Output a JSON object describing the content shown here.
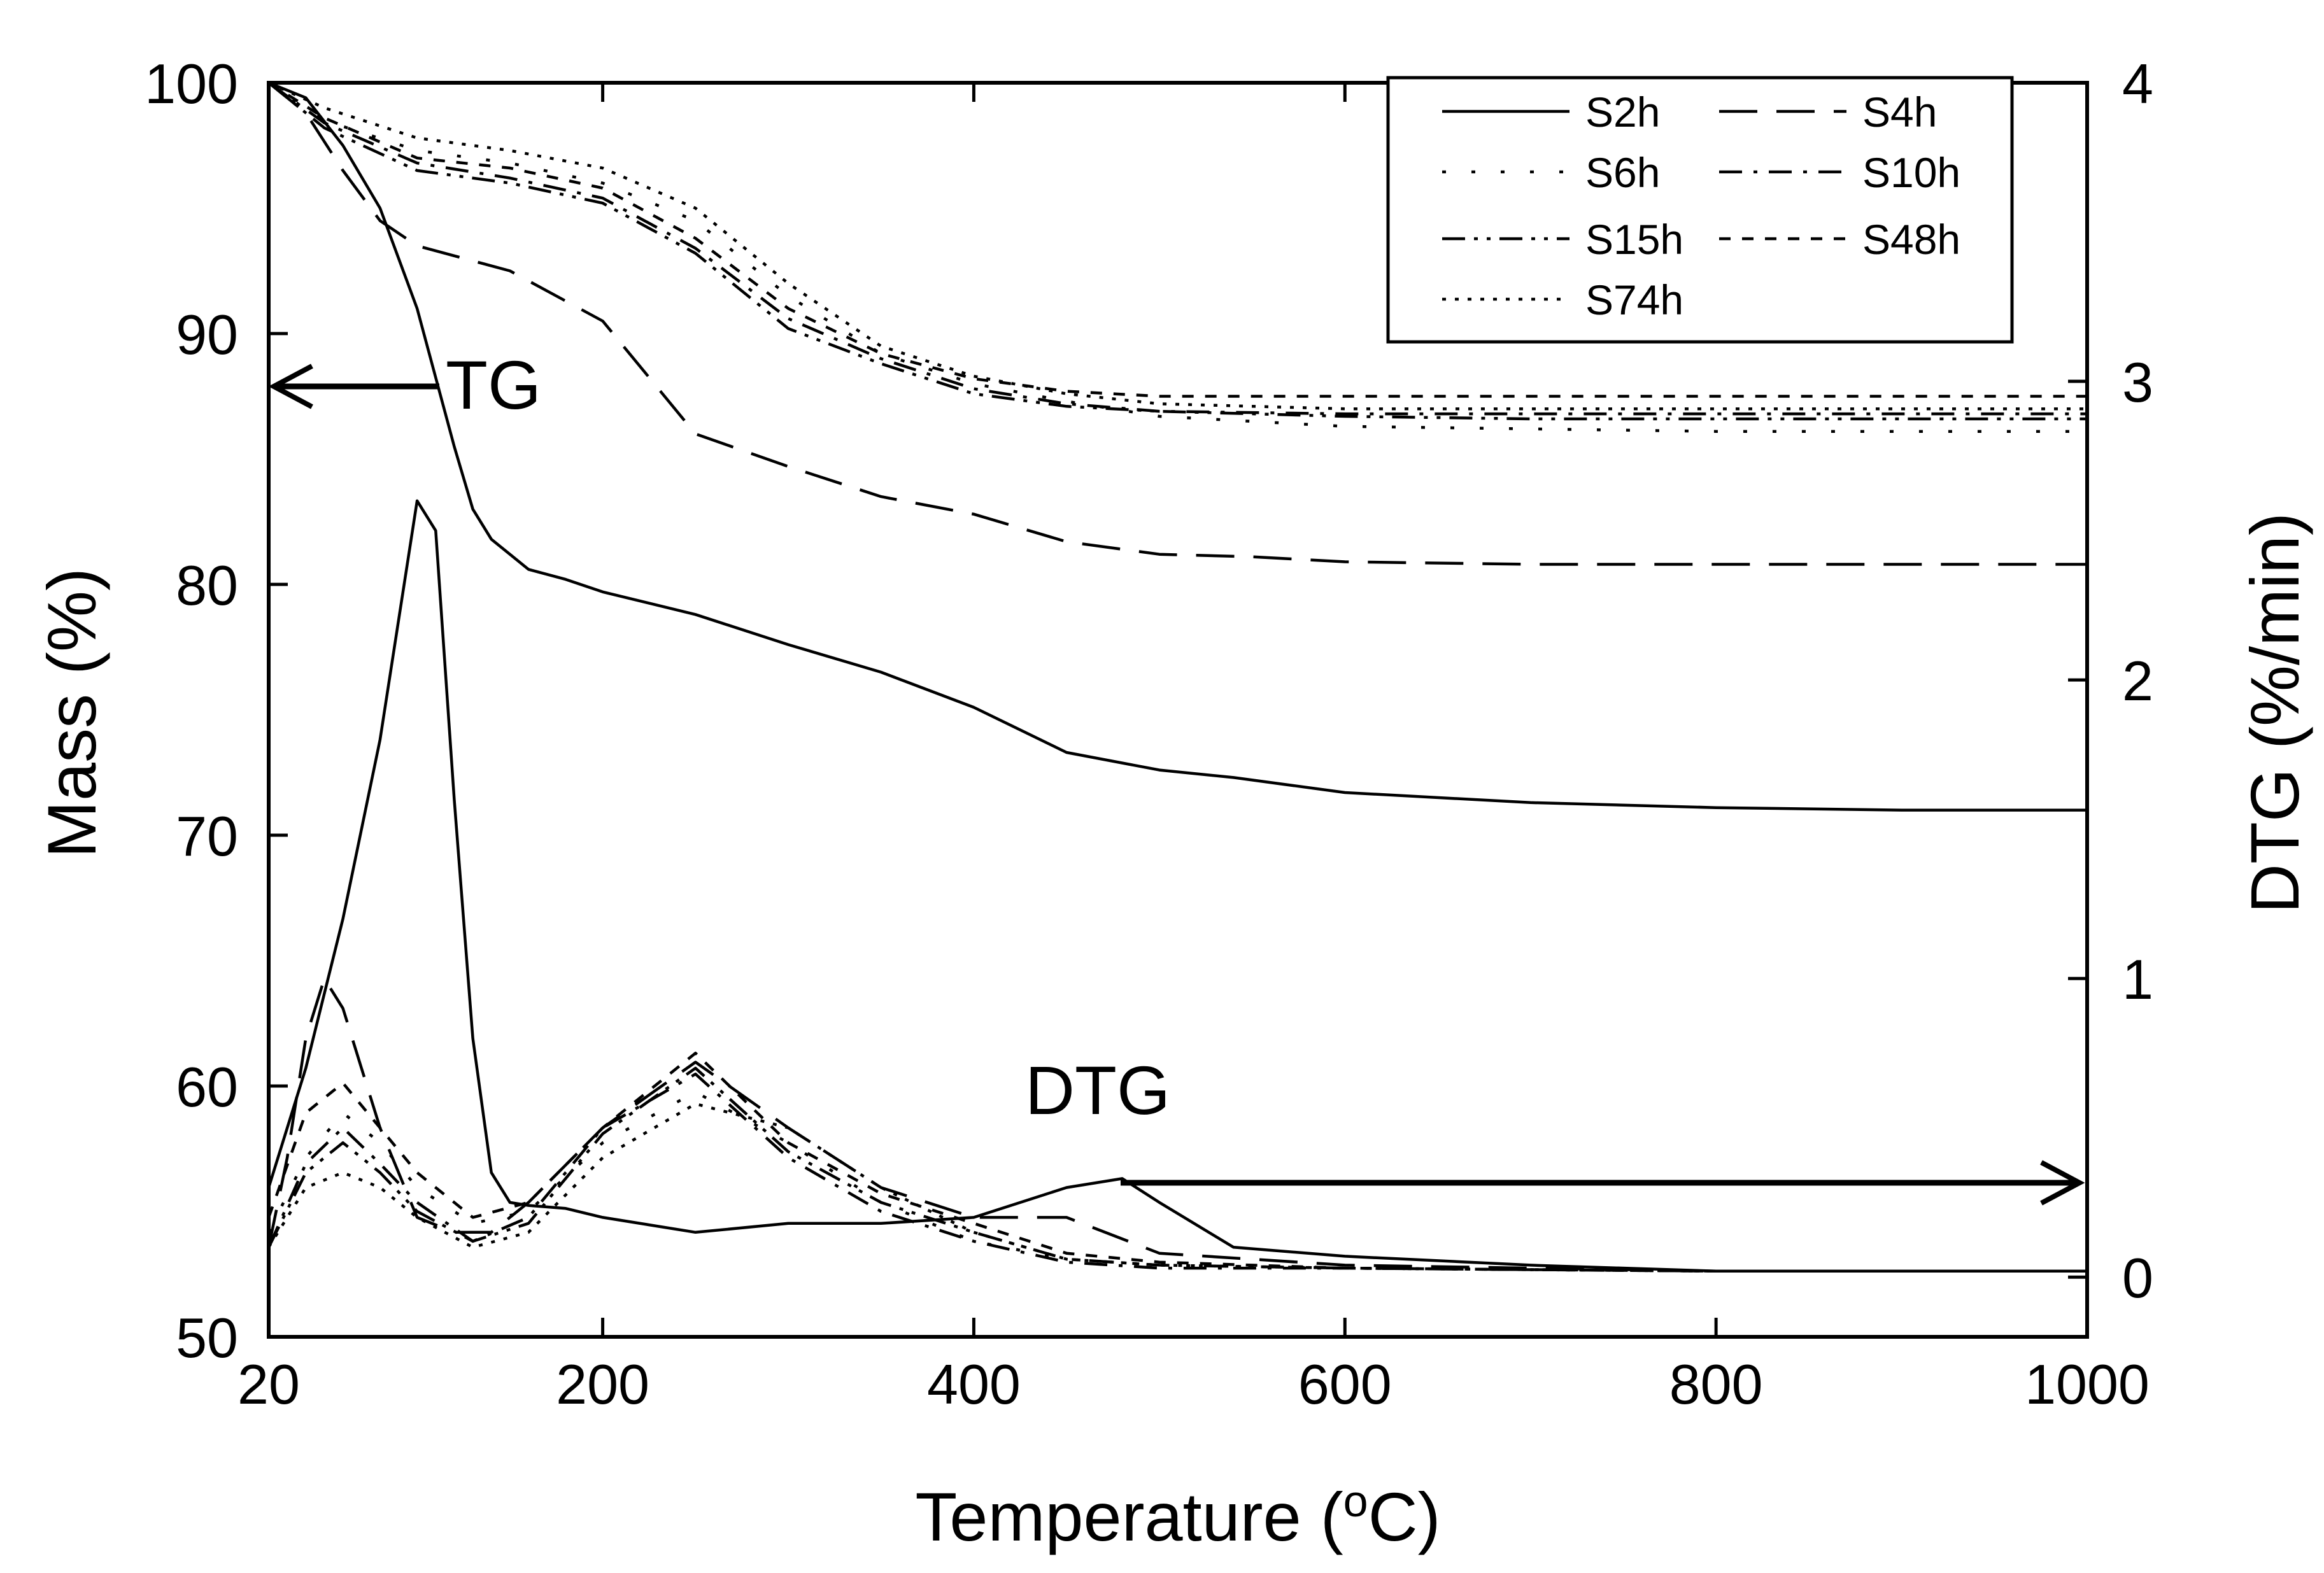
{
  "chart_data": {
    "type": "line",
    "title": "",
    "xlabel": "Temperature (°C)",
    "xlabel_parts": {
      "prefix": "Temperature (",
      "superscript": "o",
      "suffix": "C)"
    },
    "ylabel_left": "Mass (%)",
    "ylabel_right": "DTG (%/min)",
    "xlim": [
      20,
      1000
    ],
    "ylim_left": [
      50,
      100
    ],
    "ylim_right": [
      -0.2,
      4
    ],
    "x_ticks": [
      20,
      200,
      400,
      600,
      800,
      1000
    ],
    "y_ticks_left": [
      50,
      60,
      70,
      80,
      90,
      100
    ],
    "y_ticks_right": [
      0,
      1,
      2,
      3,
      4
    ],
    "grid": false,
    "legend_position": "top-right",
    "annotations": {
      "tg": "TG",
      "dtg": "DTG"
    },
    "series": [
      {
        "name": "S2h",
        "dash": "solid",
        "tg": {
          "x": [
            20,
            40,
            60,
            80,
            100,
            120,
            130,
            140,
            150,
            160,
            180,
            200,
            250,
            300,
            350,
            400,
            450,
            500,
            540,
            600,
            700,
            800,
            900,
            1000
          ],
          "y": [
            100,
            99.4,
            97.5,
            95,
            91,
            85.5,
            83,
            81.8,
            81.2,
            80.6,
            80.2,
            79.7,
            78.8,
            77.6,
            76.5,
            75.1,
            73.3,
            72.6,
            72.3,
            71.7,
            71.3,
            71.1,
            71,
            71
          ]
        },
        "dtg": {
          "x": [
            20,
            40,
            60,
            80,
            100,
            110,
            120,
            130,
            140,
            150,
            160,
            180,
            200,
            250,
            300,
            350,
            400,
            450,
            480,
            500,
            540,
            600,
            700,
            800,
            1000
          ],
          "y": [
            0.3,
            0.7,
            1.2,
            1.8,
            2.6,
            2.5,
            1.6,
            0.8,
            0.35,
            0.25,
            0.24,
            0.23,
            0.2,
            0.15,
            0.18,
            0.18,
            0.2,
            0.3,
            0.33,
            0.25,
            0.1,
            0.07,
            0.04,
            0.02,
            0.02
          ]
        }
      },
      {
        "name": "S4h",
        "dash": "dashed",
        "tg": {
          "x": [
            20,
            40,
            60,
            80,
            100,
            150,
            200,
            250,
            300,
            350,
            400,
            450,
            500,
            550,
            600,
            700,
            800,
            900,
            1000
          ],
          "y": [
            100,
            98.8,
            96.5,
            94.5,
            93.5,
            92.5,
            90.5,
            86,
            84.7,
            83.5,
            82.8,
            81.7,
            81.2,
            81.1,
            80.9,
            80.8,
            80.8,
            80.8,
            80.8
          ]
        },
        "dtg": {
          "x": [
            20,
            30,
            40,
            50,
            60,
            70,
            80,
            90,
            100,
            120,
            140,
            160,
            200,
            250,
            300,
            350,
            400,
            450,
            500,
            600,
            800,
            1000
          ],
          "y": [
            0.1,
            0.4,
            0.8,
            1.0,
            0.9,
            0.7,
            0.5,
            0.35,
            0.2,
            0.15,
            0.15,
            0.25,
            0.5,
            0.72,
            0.5,
            0.3,
            0.2,
            0.2,
            0.08,
            0.04,
            0.02,
            0.02
          ]
        }
      },
      {
        "name": "S6h",
        "dash": "sparse-dot",
        "tg": {
          "x": [
            20,
            50,
            100,
            150,
            200,
            250,
            300,
            350,
            400,
            450,
            500,
            600,
            700,
            800,
            900,
            1000
          ],
          "y": [
            100,
            98.5,
            97.3,
            96.8,
            96,
            94.5,
            91.5,
            89.2,
            88,
            87.3,
            86.7,
            86.3,
            86.2,
            86.1,
            86.1,
            86.1
          ]
        },
        "dtg": {
          "x": [
            20,
            40,
            60,
            80,
            100,
            130,
            160,
            200,
            250,
            300,
            350,
            400,
            450,
            500,
            600,
            800,
            1000
          ],
          "y": [
            0.15,
            0.4,
            0.55,
            0.45,
            0.3,
            0.18,
            0.22,
            0.45,
            0.62,
            0.45,
            0.25,
            0.12,
            0.06,
            0.04,
            0.03,
            0.02,
            0.02
          ]
        }
      },
      {
        "name": "S10h",
        "dash": "dash-dot",
        "tg": {
          "x": [
            20,
            50,
            100,
            150,
            200,
            250,
            300,
            350,
            400,
            450,
            500,
            600,
            700,
            800,
            900,
            1000
          ],
          "y": [
            100,
            98.4,
            96.8,
            96.2,
            95.4,
            93.4,
            90.6,
            89,
            87.8,
            87.2,
            86.9,
            86.8,
            86.8,
            86.8,
            86.8,
            86.8
          ]
        },
        "dtg": {
          "x": [
            20,
            40,
            60,
            80,
            100,
            130,
            160,
            200,
            250,
            300,
            350,
            400,
            450,
            500,
            600,
            800,
            1000
          ],
          "y": [
            0.1,
            0.38,
            0.5,
            0.38,
            0.25,
            0.12,
            0.2,
            0.5,
            0.68,
            0.4,
            0.22,
            0.12,
            0.05,
            0.03,
            0.03,
            0.02,
            0.02
          ]
        }
      },
      {
        "name": "S15h",
        "dash": "dash-dot-dot",
        "tg": {
          "x": [
            20,
            50,
            100,
            150,
            200,
            250,
            300,
            350,
            400,
            450,
            500,
            600,
            700,
            800,
            900,
            1000
          ],
          "y": [
            100,
            98.2,
            96.5,
            96,
            95.2,
            93.2,
            90.2,
            88.8,
            87.6,
            87.1,
            86.9,
            86.7,
            86.6,
            86.6,
            86.6,
            86.6
          ]
        },
        "dtg": {
          "x": [
            20,
            40,
            60,
            80,
            100,
            130,
            160,
            200,
            250,
            300,
            350,
            400,
            450,
            500,
            600,
            800,
            1000
          ],
          "y": [
            0.1,
            0.35,
            0.45,
            0.35,
            0.22,
            0.12,
            0.18,
            0.48,
            0.7,
            0.42,
            0.25,
            0.15,
            0.06,
            0.04,
            0.03,
            0.02,
            0.02
          ]
        }
      },
      {
        "name": "S48h",
        "dash": "short-dash",
        "tg": {
          "x": [
            20,
            50,
            100,
            150,
            200,
            250,
            300,
            350,
            400,
            450,
            500,
            600,
            700,
            800,
            900,
            1000
          ],
          "y": [
            100,
            98.6,
            97,
            96.6,
            95.8,
            93.8,
            91,
            89.2,
            88.2,
            87.7,
            87.5,
            87.5,
            87.5,
            87.5,
            87.5,
            87.5
          ]
        },
        "dtg": {
          "x": [
            20,
            40,
            60,
            80,
            100,
            130,
            160,
            200,
            250,
            300,
            350,
            400,
            450,
            500,
            600,
            800,
            1000
          ],
          "y": [
            0.2,
            0.55,
            0.65,
            0.5,
            0.35,
            0.2,
            0.25,
            0.5,
            0.75,
            0.45,
            0.28,
            0.18,
            0.08,
            0.05,
            0.03,
            0.02,
            0.02
          ]
        }
      },
      {
        "name": "S74h",
        "dash": "dotted",
        "tg": {
          "x": [
            20,
            50,
            100,
            150,
            200,
            250,
            300,
            350,
            400,
            450,
            500,
            600,
            700,
            800,
            900,
            1000
          ],
          "y": [
            100,
            99,
            97.8,
            97.3,
            96.6,
            95,
            92,
            89.5,
            88.3,
            87.6,
            87.2,
            87,
            87,
            87,
            87,
            87
          ]
        },
        "dtg": {
          "x": [
            20,
            40,
            60,
            80,
            100,
            130,
            160,
            200,
            250,
            300,
            350,
            400,
            450,
            500,
            600,
            800,
            1000
          ],
          "y": [
            0.1,
            0.3,
            0.35,
            0.3,
            0.2,
            0.1,
            0.15,
            0.4,
            0.58,
            0.5,
            0.3,
            0.15,
            0.06,
            0.04,
            0.03,
            0.02,
            0.02
          ]
        }
      }
    ]
  }
}
